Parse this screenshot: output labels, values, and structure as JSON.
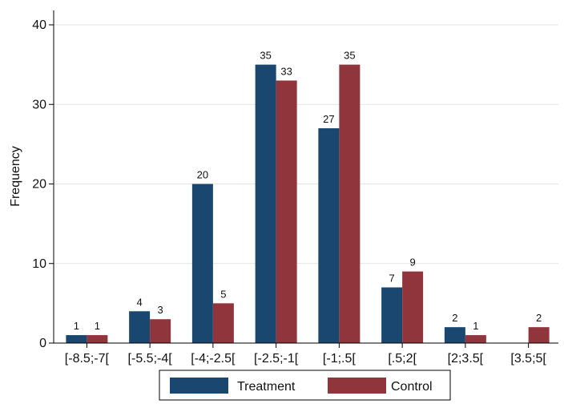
{
  "chart_data": {
    "type": "bar",
    "title": "",
    "xlabel": "",
    "ylabel": "Frequency",
    "ylim": [
      0,
      40
    ],
    "yticks": [
      0,
      10,
      20,
      30,
      40
    ],
    "grid": true,
    "legend": "bottom",
    "categories": [
      "[-8.5;-7[",
      "[-5.5;-4[",
      "[-4;-2.5[",
      "[-2.5;-1[",
      "[-1;.5[",
      "[.5;2[",
      "[2;3.5[",
      "[3.5;5["
    ],
    "series": [
      {
        "name": "Treatment",
        "color": "#1a476f",
        "values": [
          1,
          4,
          20,
          35,
          27,
          7,
          2,
          0
        ],
        "labels": [
          "1",
          "4",
          "20",
          "35",
          "27",
          "7",
          "2",
          ""
        ]
      },
      {
        "name": "Control",
        "color": "#90353b",
        "values": [
          1,
          3,
          5,
          33,
          35,
          9,
          1,
          2
        ],
        "labels": [
          "1",
          "3",
          "5",
          "33",
          "35",
          "9",
          "1",
          "2"
        ]
      }
    ]
  }
}
